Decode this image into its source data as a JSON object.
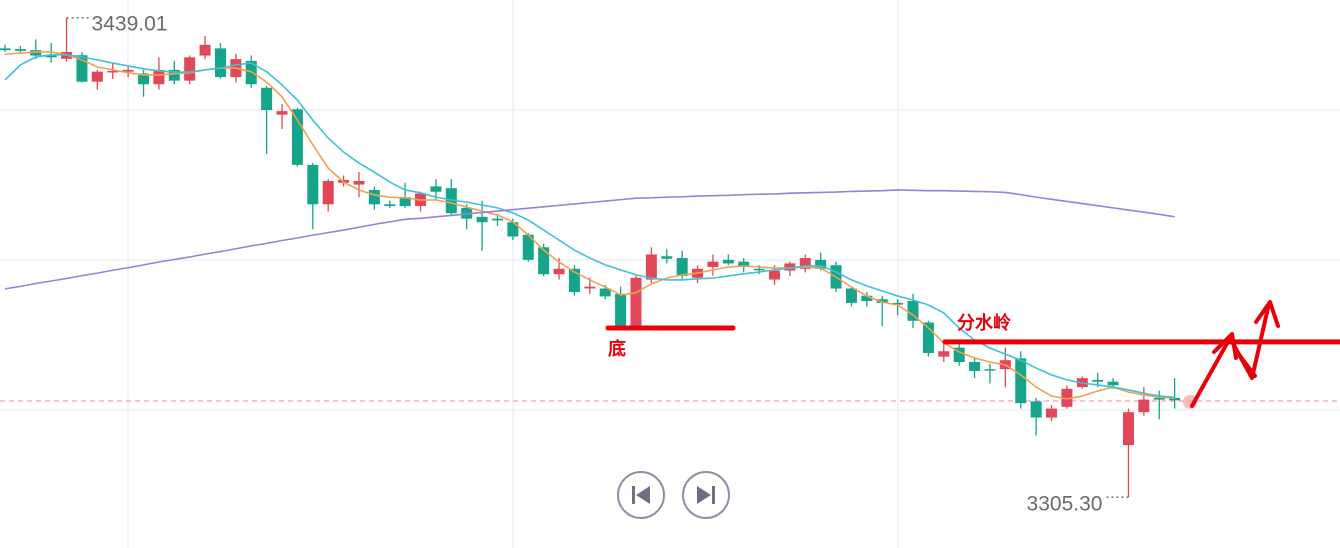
{
  "chart_data": {
    "type": "candlestick",
    "ylim": [
      3291.1,
      3444.0
    ],
    "up_color": "#e0485a",
    "down_color": "#14a58b",
    "open": [
      3430.5,
      3430.3,
      3430.0,
      3428.5,
      3427.6,
      3428.6,
      3421.2,
      3423.8,
      3424.0,
      3423.5,
      3420.5,
      3424.5,
      3421.5,
      3428.5,
      3430.5,
      3422.5,
      3427.0,
      3419.5,
      3412.0,
      3413.5,
      3398.0,
      3387.0,
      3393.0,
      3392.5,
      3391.0,
      3387.0,
      3389.0,
      3386.5,
      3392.0,
      3391.5,
      3386.0,
      3383.5,
      3383.0,
      3382.0,
      3378.5,
      3375.0,
      3367.5,
      3369.0,
      3363.5,
      3363.5,
      3362.0,
      3353.0,
      3366.0,
      3372.5,
      3372.0,
      3366.5,
      3369.5,
      3371.5,
      3371.0,
      3369.0,
      3366.0,
      3368.5,
      3369.0,
      3371.5,
      3370.0,
      3363.5,
      3361.5,
      3360.5,
      3359.5,
      3360.0,
      3354.0,
      3344.5,
      3347.0,
      3343.0,
      3341.0,
      3341.0,
      3344.0,
      3332.0,
      3327.5,
      3330.5,
      3336.0,
      3338.0,
      3337.5,
      3319.8,
      3329.0,
      3333.0,
      3333.0
    ],
    "high": [
      3431.5,
      3431.2,
      3433.0,
      3432.0,
      3439.01,
      3429.5,
      3424.5,
      3426.5,
      3425.3,
      3424.5,
      3428.0,
      3427.0,
      3428.5,
      3434.0,
      3432.0,
      3429.0,
      3428.5,
      3420.0,
      3415.0,
      3414.0,
      3398.5,
      3394.0,
      3395.0,
      3396.0,
      3392.0,
      3388.0,
      3393.0,
      3390.5,
      3394.0,
      3394.0,
      3387.0,
      3388.0,
      3384.0,
      3383.0,
      3379.0,
      3376.0,
      3372.0,
      3370.0,
      3366.5,
      3364.5,
      3364.0,
      3367.0,
      3375.0,
      3374.5,
      3374.0,
      3370.0,
      3373.0,
      3373.0,
      3372.0,
      3370.0,
      3370.0,
      3371.0,
      3373.0,
      3373.5,
      3371.0,
      3364.0,
      3362.5,
      3361.5,
      3360.5,
      3362.0,
      3354.5,
      3348.0,
      3348.0,
      3344.0,
      3342.5,
      3347.0,
      3346.0,
      3333.0,
      3331.0,
      3336.5,
      3339.0,
      3340.0,
      3338.5,
      3330.0,
      3336.0,
      3335.0,
      3338.5
    ],
    "low": [
      3429.5,
      3429.3,
      3427.5,
      3426.5,
      3426.8,
      3421.0,
      3419.0,
      3422.0,
      3422.5,
      3417.0,
      3419.0,
      3420.5,
      3420.5,
      3427.5,
      3422.0,
      3421.0,
      3419.5,
      3401.0,
      3408.0,
      3397.5,
      3380.0,
      3385.0,
      3392.0,
      3389.0,
      3385.5,
      3386.0,
      3386.0,
      3385.0,
      3388.0,
      3384.0,
      3380.0,
      3374.0,
      3381.0,
      3377.0,
      3371.0,
      3367.0,
      3366.0,
      3361.5,
      3362.0,
      3360.5,
      3352.5,
      3352.5,
      3365.0,
      3370.5,
      3366.0,
      3365.0,
      3367.0,
      3370.0,
      3368.0,
      3367.5,
      3364.5,
      3367.0,
      3368.0,
      3368.5,
      3362.5,
      3358.5,
      3358.5,
      3353.0,
      3356.0,
      3352.5,
      3344.5,
      3343.0,
      3342.0,
      3338.5,
      3337.0,
      3336.0,
      3330.0,
      3322.5,
      3326.5,
      3330.0,
      3335.5,
      3336.0,
      3335.5,
      3305.3,
      3328.0,
      3327.0,
      3330.0
    ],
    "close": [
      3430.0,
      3429.8,
      3428.5,
      3428.0,
      3429.5,
      3421.2,
      3424.0,
      3424.2,
      3424.5,
      3420.5,
      3424.5,
      3421.5,
      3428.0,
      3431.5,
      3422.5,
      3427.5,
      3420.5,
      3413.3,
      3413.0,
      3398.0,
      3387.0,
      3393.5,
      3393.8,
      3393.5,
      3387.0,
      3386.5,
      3386.5,
      3390.0,
      3390.5,
      3384.5,
      3383.0,
      3382.0,
      3382.5,
      3378.0,
      3371.5,
      3367.5,
      3369.0,
      3362.5,
      3364.0,
      3361.3,
      3353.0,
      3366.5,
      3373.0,
      3371.8,
      3367.0,
      3369.0,
      3371.0,
      3370.5,
      3369.5,
      3368.8,
      3368.5,
      3370.5,
      3372.0,
      3369.0,
      3363.5,
      3359.5,
      3360.0,
      3359.5,
      3359.0,
      3354.5,
      3345.5,
      3346.0,
      3343.0,
      3340.5,
      3340.8,
      3343.5,
      3331.5,
      3327.5,
      3330.0,
      3335.5,
      3338.5,
      3337.5,
      3336.5,
      3329.0,
      3332.5,
      3332.5,
      3332.3
    ],
    "ma_lines": [
      {
        "color": "#f3a04c",
        "values": [
          3428.9,
          3429.2,
          3429.5,
          3429.5,
          3428.7,
          3427.3,
          3425.3,
          3424.5,
          3423.7,
          3423.1,
          3423.1,
          3423.4,
          3423.7,
          3424.5,
          3425.0,
          3425.0,
          3424.0,
          3421.1,
          3417.0,
          3410.5,
          3403.6,
          3397.1,
          3393.2,
          3391.0,
          3389.6,
          3389.0,
          3388.8,
          3388.2,
          3388.2,
          3387.4,
          3386.2,
          3385.1,
          3384.0,
          3382.1,
          3378.4,
          3374.2,
          3370.9,
          3368.1,
          3365.9,
          3363.9,
          3361.7,
          3362.3,
          3364.8,
          3366.4,
          3367.3,
          3367.8,
          3368.7,
          3369.5,
          3369.8,
          3369.5,
          3369.2,
          3369.2,
          3369.5,
          3369.2,
          3366.7,
          3363.9,
          3361.4,
          3359.7,
          3358.9,
          3356.1,
          3352.5,
          3348.3,
          3345.8,
          3344.1,
          3343.0,
          3342.2,
          3339.4,
          3336.0,
          3333.5,
          3332.7,
          3333.5,
          3334.9,
          3336.0,
          3334.6,
          3333.8,
          3333.2,
          3332.9
        ]
      },
      {
        "color": "#3ec2d4",
        "values": [
          3421.7,
          3425.9,
          3428.1,
          3428.7,
          3428.7,
          3428.1,
          3427.3,
          3426.4,
          3425.6,
          3424.8,
          3424.2,
          3423.9,
          3423.9,
          3424.5,
          3425.0,
          3425.9,
          3426.4,
          3424.0,
          3420.3,
          3416.1,
          3410.5,
          3405.5,
          3401.6,
          3398.5,
          3396.0,
          3393.2,
          3391.0,
          3390.2,
          3389.0,
          3388.2,
          3387.6,
          3386.8,
          3386.0,
          3384.6,
          3382.6,
          3379.8,
          3377.0,
          3374.2,
          3372.0,
          3370.1,
          3368.7,
          3367.3,
          3366.4,
          3365.9,
          3365.9,
          3366.2,
          3366.4,
          3367.0,
          3367.6,
          3368.1,
          3368.7,
          3369.2,
          3369.8,
          3369.8,
          3368.1,
          3365.9,
          3364.2,
          3362.8,
          3361.4,
          3360.3,
          3358.9,
          3356.7,
          3352.5,
          3349.1,
          3346.9,
          3345.2,
          3343.5,
          3341.3,
          3339.4,
          3338.0,
          3337.1,
          3336.6,
          3336.0,
          3335.2,
          3334.3,
          3333.5,
          3333.2
        ]
      },
      {
        "color": "#9a7fdc",
        "values": [
          3363.4,
          3364.1,
          3364.9,
          3365.6,
          3366.3,
          3367.1,
          3367.8,
          3368.6,
          3369.3,
          3370.1,
          3370.9,
          3371.6,
          3372.3,
          3373.1,
          3373.8,
          3374.6,
          3375.4,
          3376.1,
          3376.9,
          3377.6,
          3378.4,
          3379.1,
          3379.8,
          3380.6,
          3381.4,
          3382.1,
          3382.8,
          3383.1,
          3383.5,
          3383.9,
          3384.3,
          3384.7,
          3385.1,
          3385.5,
          3385.9,
          3386.3,
          3386.7,
          3387.1,
          3387.5,
          3387.9,
          3388.3,
          3388.7,
          3388.8,
          3389.0,
          3389.1,
          3389.3,
          3389.4,
          3389.5,
          3389.7,
          3389.8,
          3389.9,
          3390.1,
          3390.2,
          3390.3,
          3390.4,
          3390.6,
          3390.7,
          3390.8,
          3391.0,
          3390.9,
          3390.8,
          3390.8,
          3390.7,
          3390.6,
          3390.5,
          3390.3,
          3389.7,
          3389.0,
          3388.4,
          3387.8,
          3387.2,
          3386.6,
          3386.0,
          3385.4,
          3384.8,
          3384.2,
          3383.5
        ]
      }
    ],
    "price_line": 3332.1,
    "max_label": "3439.01",
    "min_label": "3305.30",
    "annotations": [
      {
        "text": "底",
        "value": 3352.5,
        "color": "#e8000b"
      },
      {
        "text": "分水岭",
        "value": 3348.6,
        "color": "#e8000b"
      }
    ]
  }
}
